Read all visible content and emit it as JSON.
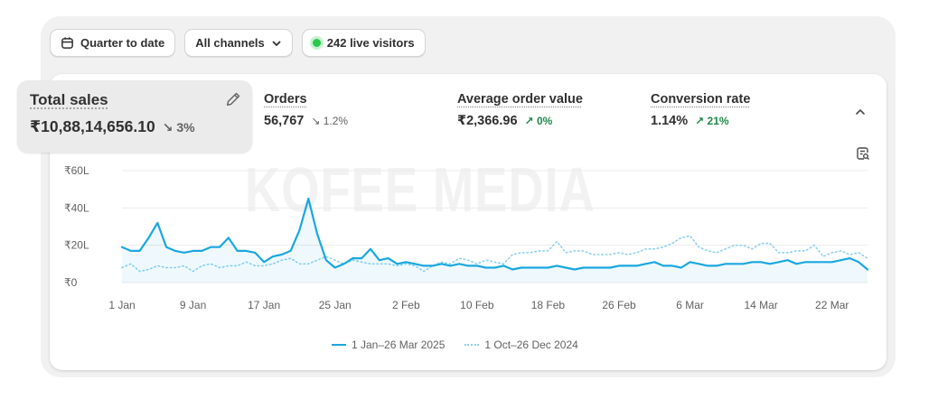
{
  "toolbar": {
    "date_range": "Quarter to date",
    "channels": "All channels",
    "live_visitors": "242 live visitors"
  },
  "metrics": {
    "total_sales": {
      "title": "Total sales",
      "value": "₹10,88,14,656.10",
      "change": "3%",
      "direction": "down"
    },
    "orders": {
      "title": "Orders",
      "value": "56,767",
      "change": "1.2%",
      "direction": "down"
    },
    "aov": {
      "title": "Average order value",
      "value": "₹2,366.96",
      "change": "0%",
      "direction": "up"
    },
    "conversion": {
      "title": "Conversion rate",
      "value": "1.14%",
      "change": "21%",
      "direction": "up"
    }
  },
  "icons": {
    "calendar": "calendar-icon",
    "chevron": "chevron-down-icon",
    "pencil": "pencil-icon",
    "collapse": "chevron-up-icon",
    "analysis": "report-search-icon"
  },
  "watermark": "KOFEE MEDIA",
  "colors": {
    "current_series": "#1aa7e0",
    "previous_series": "#8fd1ee",
    "up_change": "#1f8a4c",
    "live_dot": "#29c94a"
  },
  "chart_data": {
    "type": "line",
    "y_unit": "₹ (L = lakh)",
    "ylim": [
      0,
      60
    ],
    "y_ticks": [
      "₹0",
      "₹20L",
      "₹40L",
      "₹60L"
    ],
    "y_tick_values": [
      0,
      20,
      40,
      60
    ],
    "x_ticks": [
      "1 Jan",
      "9 Jan",
      "17 Jan",
      "25 Jan",
      "2 Feb",
      "10 Feb",
      "18 Feb",
      "26 Feb",
      "6 Mar",
      "14 Mar",
      "22 Mar"
    ],
    "x_tick_days": [
      0,
      8,
      16,
      24,
      32,
      40,
      48,
      56,
      64,
      72,
      80
    ],
    "grid": true,
    "legend_position": "bottom",
    "series": [
      {
        "name": "1 Jan–26 Mar 2025",
        "style": "solid",
        "x_days": [
          0,
          1,
          2,
          3,
          4,
          5,
          6,
          7,
          8,
          9,
          10,
          11,
          12,
          13,
          14,
          15,
          16,
          17,
          18,
          19,
          20,
          21,
          22,
          23,
          24,
          25,
          26,
          27,
          28,
          29,
          30,
          31,
          32,
          33,
          34,
          35,
          36,
          37,
          38,
          39,
          40,
          41,
          42,
          43,
          44,
          45,
          46,
          47,
          48,
          49,
          50,
          51,
          52,
          53,
          54,
          55,
          56,
          57,
          58,
          59,
          60,
          61,
          62,
          63,
          64,
          65,
          66,
          67,
          68,
          69,
          70,
          71,
          72,
          73,
          74,
          75,
          76,
          77,
          78,
          79,
          80,
          81,
          82,
          83,
          84
        ],
        "values": [
          19,
          17,
          17,
          24,
          32,
          19,
          17,
          16,
          17,
          17,
          19,
          19,
          24,
          17,
          17,
          16,
          11,
          14,
          15,
          17,
          28,
          45,
          26,
          12,
          8,
          10,
          13,
          13,
          18,
          12,
          13,
          10,
          11,
          10,
          9,
          9,
          10,
          9,
          10,
          9,
          9,
          8,
          8,
          9,
          7,
          8,
          8,
          8,
          8,
          9,
          8,
          7,
          8,
          8,
          8,
          8,
          9,
          9,
          9,
          10,
          11,
          9,
          9,
          8,
          11,
          10,
          9,
          9,
          10,
          10,
          10,
          11,
          11,
          10,
          11,
          12,
          10,
          11,
          11,
          11,
          11,
          12,
          13,
          11,
          7
        ]
      },
      {
        "name": "1 Oct–26 Dec 2024",
        "style": "dotted",
        "x_days": [
          0,
          1,
          2,
          3,
          4,
          5,
          6,
          7,
          8,
          9,
          10,
          11,
          12,
          13,
          14,
          15,
          16,
          17,
          18,
          19,
          20,
          21,
          22,
          23,
          24,
          25,
          26,
          27,
          28,
          29,
          30,
          31,
          32,
          33,
          34,
          35,
          36,
          37,
          38,
          39,
          40,
          41,
          42,
          43,
          44,
          45,
          46,
          47,
          48,
          49,
          50,
          51,
          52,
          53,
          54,
          55,
          56,
          57,
          58,
          59,
          60,
          61,
          62,
          63,
          64,
          65,
          66,
          67,
          68,
          69,
          70,
          71,
          72,
          73,
          74,
          75,
          76,
          77,
          78,
          79,
          80,
          81,
          82,
          83,
          84
        ],
        "values": [
          8,
          10,
          6,
          7,
          9,
          8,
          8,
          9,
          6,
          9,
          10,
          8,
          9,
          9,
          11,
          9,
          9,
          10,
          12,
          13,
          10,
          10,
          12,
          14,
          12,
          10,
          12,
          11,
          10,
          10,
          10,
          9,
          10,
          9,
          6,
          9,
          11,
          10,
          13,
          12,
          10,
          12,
          11,
          10,
          15,
          16,
          16,
          17,
          17,
          22,
          16,
          17,
          17,
          15,
          15,
          15,
          16,
          15,
          16,
          18,
          18,
          19,
          21,
          24,
          25,
          19,
          17,
          16,
          18,
          20,
          20,
          18,
          21,
          21,
          16,
          16,
          17,
          17,
          20,
          14,
          16,
          17,
          15,
          16,
          13
        ]
      }
    ]
  }
}
